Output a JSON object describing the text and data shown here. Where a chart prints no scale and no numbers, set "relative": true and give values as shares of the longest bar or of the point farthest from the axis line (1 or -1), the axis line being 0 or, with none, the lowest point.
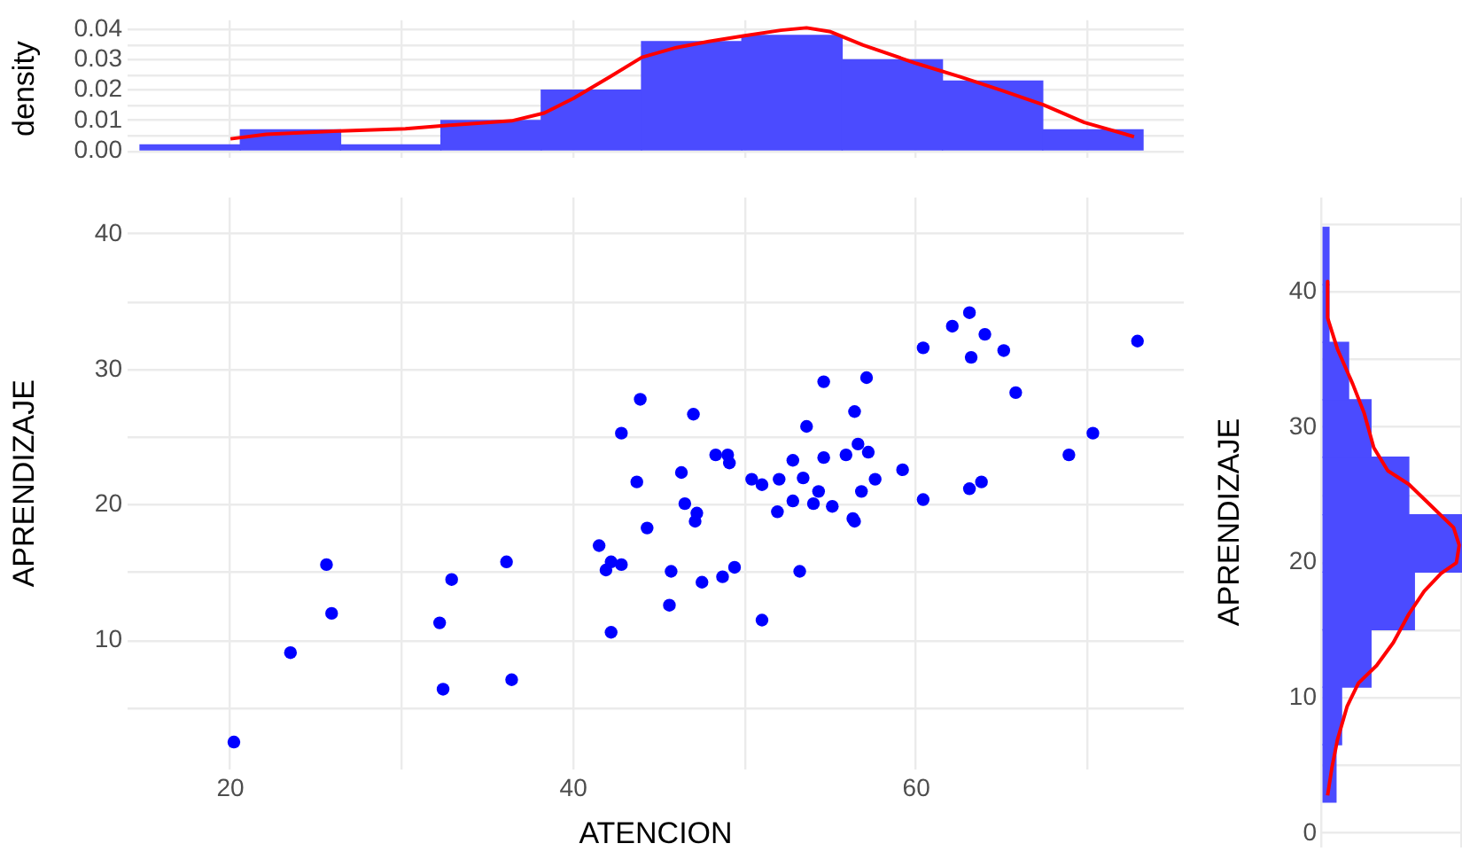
{
  "chart_data": [
    {
      "type": "histogram",
      "ylabel": "density",
      "grid": true,
      "tick_labels": "y",
      "xlim": [
        14,
        75.6
      ],
      "ylim": [
        -0.002,
        0.043
      ],
      "xticks": [
        {
          "value": 20,
          "label": null
        },
        {
          "value": 30,
          "label": null
        },
        {
          "value": 40,
          "label": null
        },
        {
          "value": 50,
          "label": null
        },
        {
          "value": 60,
          "label": null
        },
        {
          "value": 70,
          "label": null
        }
      ],
      "yticks": [
        {
          "value": 0,
          "label": "0.00"
        },
        {
          "value": 0.005,
          "label": null
        },
        {
          "value": 0.01,
          "label": "0.01"
        },
        {
          "value": 0.015,
          "label": null
        },
        {
          "value": 0.02,
          "label": "0.02"
        },
        {
          "value": 0.025,
          "label": null
        },
        {
          "value": 0.03,
          "label": "0.03"
        },
        {
          "value": 0.035,
          "label": null
        },
        {
          "value": 0.04,
          "label": "0.04"
        }
      ],
      "series": [
        {
          "type": "histogram",
          "color": "#4b4bff",
          "bins": [
            14.7,
            20.6,
            26.4,
            32.3,
            38.1,
            44.0,
            49.8,
            55.7,
            61.5,
            67.4,
            73.2
          ],
          "values": [
            0.002,
            0.007,
            0.002,
            0.01,
            0.02,
            0.036,
            0.038,
            0.03,
            0.023,
            0.007
          ]
        },
        {
          "type": "line",
          "color": "#ff0000",
          "x": [
            20,
            22.1,
            26.0,
            30.2,
            32.6,
            36.4,
            38.3,
            40,
            42.1,
            44.0,
            46.0,
            47.9,
            50,
            52.1,
            53.6,
            55.0,
            56.9,
            60,
            62.6,
            65.0,
            67.4,
            69.8,
            72.7
          ],
          "values": [
            0.004,
            0.0055,
            0.0065,
            0.0073,
            0.0084,
            0.0099,
            0.0125,
            0.0173,
            0.0243,
            0.0308,
            0.034,
            0.036,
            0.0379,
            0.0397,
            0.0405,
            0.0392,
            0.0348,
            0.0288,
            0.0243,
            0.0199,
            0.0152,
            0.0094,
            0.0047
          ]
        }
      ]
    },
    {
      "type": "scatter",
      "xlabel": "ATENCION",
      "ylabel": "APRENDIZAJE",
      "grid": true,
      "marker": "circle",
      "color": "#0000ff",
      "xlim": [
        14,
        75.6
      ],
      "ylim": [
        0.5,
        42.7
      ],
      "xticks": [
        20,
        {
          "value": 30,
          "label": null
        },
        40,
        {
          "value": 50,
          "label": null
        },
        60,
        {
          "value": 70,
          "label": null
        }
      ],
      "yticks": [
        {
          "value": 5,
          "label": null
        },
        10,
        {
          "value": 15,
          "label": null
        },
        20,
        {
          "value": 25,
          "label": null
        },
        30,
        {
          "value": 35,
          "label": null
        },
        40
      ],
      "x": [
        20.2,
        23.5,
        25.6,
        25.9,
        32.2,
        32.4,
        32.9,
        36.1,
        36.4,
        41.5,
        41.9,
        42.2,
        42.2,
        42.8,
        42.8,
        43.7,
        43.9,
        44.3,
        45.7,
        45.6,
        47.0,
        46.3,
        46.5,
        47.2,
        47.1,
        47.5,
        48.3,
        49.0,
        49.1,
        48.7,
        49.4,
        50.4,
        51.0,
        51.0,
        52.0,
        51.9,
        52.8,
        52.8,
        53.4,
        53.2,
        53.6,
        54.3,
        54.0,
        54.6,
        54.6,
        55.1,
        55.9,
        56.4,
        56.6,
        57.1,
        57.2,
        56.8,
        57.6,
        56.3,
        56.4,
        59.2,
        60.4,
        60.4,
        62.1,
        63.1,
        63.2,
        64.0,
        63.1,
        63.8,
        65.1,
        65.8,
        68.9,
        70.3,
        72.9
      ],
      "values": [
        2.5,
        9.1,
        15.6,
        12.0,
        11.3,
        6.4,
        14.5,
        15.8,
        7.1,
        17.0,
        15.2,
        15.8,
        10.6,
        15.6,
        25.3,
        21.7,
        27.8,
        18.3,
        15.1,
        12.6,
        26.7,
        22.4,
        20.1,
        19.4,
        18.8,
        14.3,
        23.7,
        23.7,
        23.1,
        14.7,
        15.4,
        21.9,
        21.5,
        11.5,
        21.9,
        19.5,
        23.3,
        20.3,
        22.0,
        15.1,
        25.8,
        21.0,
        20.1,
        29.1,
        23.5,
        19.9,
        23.7,
        26.9,
        24.5,
        29.4,
        23.9,
        21.0,
        21.9,
        19.0,
        18.8,
        22.6,
        31.6,
        20.4,
        33.2,
        34.2,
        30.9,
        32.6,
        21.2,
        21.7,
        31.4,
        28.3,
        23.7,
        25.3,
        32.1
      ]
    },
    {
      "type": "histogram",
      "orientation": "horizontal",
      "relative": true,
      "ylabel": "APRENDIZAJE",
      "grid": true,
      "ylim": [
        -1,
        47
      ],
      "yticks": [
        0,
        {
          "value": 5,
          "label": null
        },
        10,
        {
          "value": 15,
          "label": null
        },
        20,
        {
          "value": 25,
          "label": null
        },
        30,
        {
          "value": 35,
          "label": null
        },
        40,
        {
          "value": 45,
          "label": null
        }
      ],
      "series": [
        {
          "type": "histogram",
          "color": "#4b4bff",
          "bins": [
            2.3,
            6.55,
            10.8,
            15.05,
            19.3,
            23.55,
            27.8,
            32.05,
            36.3,
            40.55,
            44.8
          ],
          "values": [
            0.1,
            0.14,
            0.35,
            0.66,
            1,
            0.62,
            0.35,
            0.19,
            0.05,
            0.05
          ]
        },
        {
          "type": "line",
          "color": "#ff0000",
          "x": [
            40.8,
            38.1,
            35.8,
            33.2,
            31.1,
            28.5,
            26.8,
            25.8,
            23.9,
            22.6,
            21.3,
            20.0,
            19.2,
            17.9,
            16.2,
            14.1,
            12.4,
            11.1,
            9.4,
            6.9,
            4.8,
            2.8
          ],
          "values": [
            0.04,
            0.04,
            0.11,
            0.22,
            0.3,
            0.37,
            0.47,
            0.62,
            0.81,
            0.94,
            0.98,
            0.96,
            0.85,
            0.73,
            0.62,
            0.51,
            0.39,
            0.26,
            0.18,
            0.11,
            0.07,
            0.04
          ]
        }
      ]
    }
  ]
}
